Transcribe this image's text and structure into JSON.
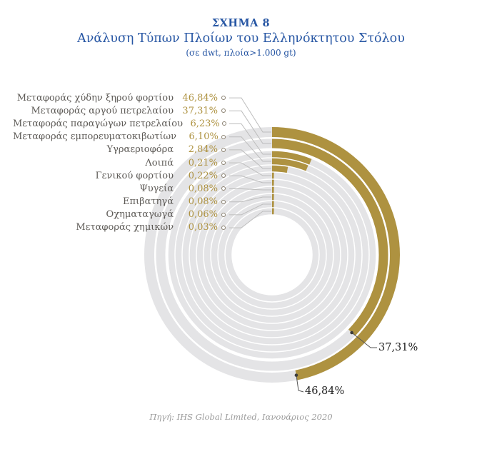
{
  "header": {
    "figure_label": "ΣΧΗΜΑ 8",
    "title": "Ανάλυση Τύπων Πλοίων του Ελληνόκτητου Στόλου",
    "subtitle": "(σε dwt, πλοία>1.000 gt)"
  },
  "chart_data": {
    "type": "radial-bar",
    "title": "Ανάλυση Τύπων Πλοίων του Ελληνόκτητου Στόλου",
    "unit": "% (σε dwt, πλοία>1.000 gt)",
    "direction": "clockwise",
    "start_angle_deg": 0,
    "full_circle_deg": 360,
    "categories": [
      "Μεταφοράς χύδην ξηρού φορτίου",
      "Μεταφοράς αργού πετρελαίου",
      "Μεταφοράς παραγώγων πετρελαίου",
      "Μεταφοράς εμπορευματοκιβωτίων",
      "Υγραεριοφόρα",
      "Λοιπά",
      "Γενικού φορτίου",
      "Ψυγεία",
      "Επιβατηγά",
      "Οχηματαγωγά",
      "Μεταφοράς χημικών"
    ],
    "values": [
      46.84,
      37.31,
      6.23,
      6.1,
      2.84,
      0.21,
      0.22,
      0.08,
      0.08,
      0.06,
      0.03
    ],
    "value_labels": [
      "46,84%",
      "37,31%",
      "6,23%",
      "6,10%",
      "2,84%",
      "0,21%",
      "0,22%",
      "0,08%",
      "0,08%",
      "0,06%",
      "0,03%"
    ],
    "annotations": [
      {
        "ring": 0,
        "label": "46,84%"
      },
      {
        "ring": 1,
        "label": "37,31%"
      }
    ],
    "colors": {
      "arc": "#AE9240",
      "track": "#E4E4E6",
      "leader_line": "#bdbdbd",
      "callout_dot": "#3c3c3c",
      "title_blue": "#2857A4",
      "percent_text": "#AE9240",
      "category_text": "#5d5a56"
    },
    "legend_position": "left",
    "grid": false
  },
  "footer": {
    "source": "Πηγή: IHS Global Limited, Ιανουάριος 2020"
  }
}
